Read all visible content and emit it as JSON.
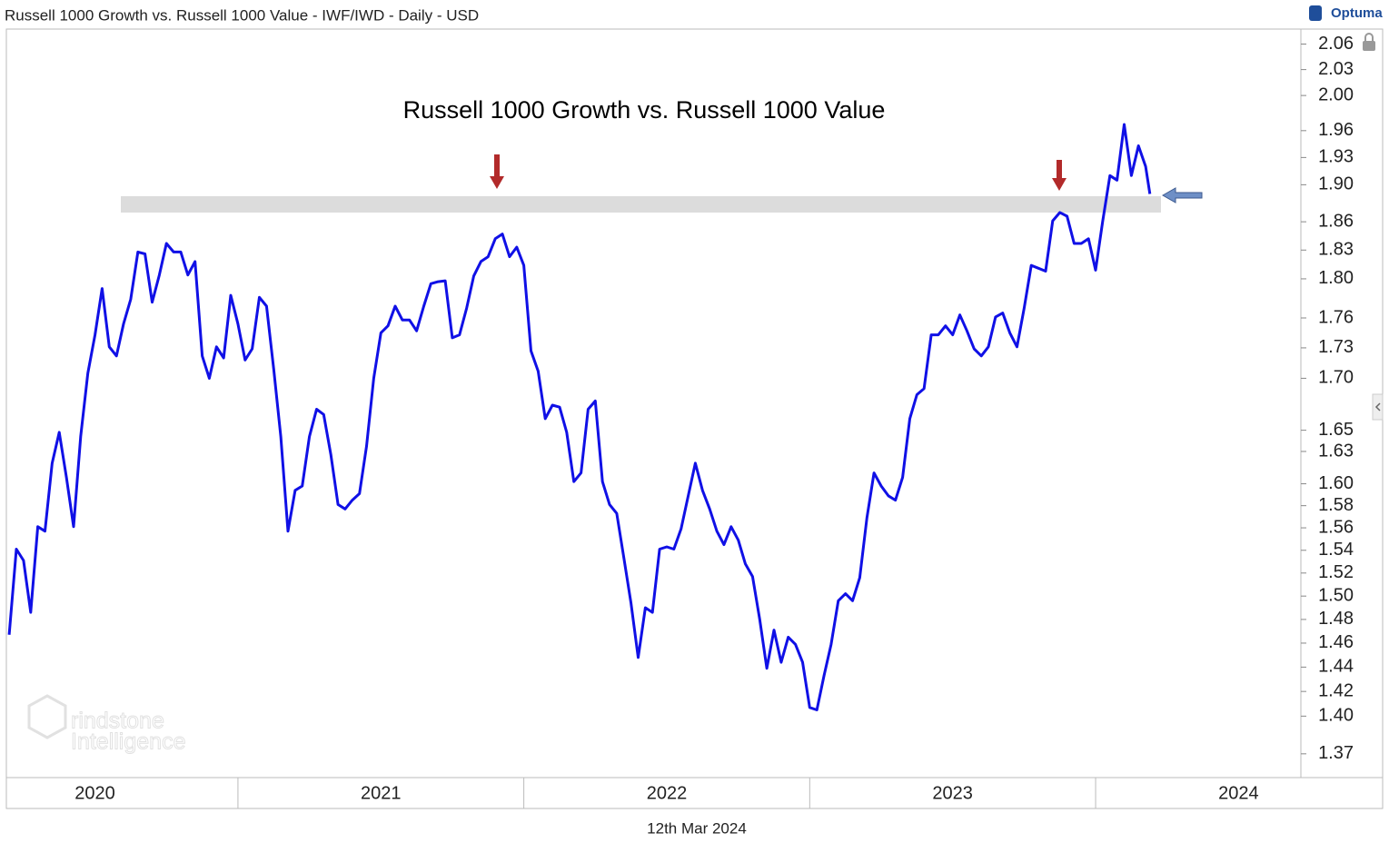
{
  "header": {
    "title": "Russell 1000 Growth vs. Russell 1000 Value - IWF/IWD - Daily - USD",
    "brand": "Optuma"
  },
  "footer": {
    "date": "12th Mar 2024"
  },
  "watermark": {
    "line1": "rindstone",
    "line2": "Intelligence"
  },
  "chart_data": {
    "type": "line",
    "title": "Russell 1000 Growth vs. Russell 1000 Value",
    "log_scale": true,
    "grid": false,
    "y_axis_side": "right",
    "color": "#1010e6",
    "xlim": [
      2020.19,
      2024.718
    ],
    "xticks": [
      2020,
      2021,
      2022,
      2023,
      2024
    ],
    "ylim": [
      1.35,
      2.08
    ],
    "yticks": [
      2.06,
      2.03,
      {
        "value": 2,
        "label": "2.00"
      },
      1.96,
      1.93,
      {
        "value": 1.9,
        "label": "1.90"
      },
      1.86,
      1.83,
      {
        "value": 1.8,
        "label": "1.80"
      },
      1.76,
      1.73,
      {
        "value": 1.7,
        "label": "1.70"
      },
      1.65,
      1.63,
      {
        "value": 1.6,
        "label": "1.60"
      },
      1.58,
      1.56,
      1.54,
      1.52,
      {
        "value": 1.5,
        "label": "1.50"
      },
      1.48,
      1.46,
      1.44,
      1.42,
      {
        "value": 1.4,
        "label": "1.40"
      },
      1.37
    ],
    "x": [
      2020.2,
      2020.225,
      2020.25,
      2020.275,
      2020.3,
      2020.325,
      2020.35,
      2020.375,
      2020.4,
      2020.425,
      2020.45,
      2020.475,
      2020.5,
      2020.525,
      2020.55,
      2020.575,
      2020.6,
      2020.625,
      2020.65,
      2020.675,
      2020.7,
      2020.725,
      2020.75,
      2020.775,
      2020.8,
      2020.825,
      2020.85,
      2020.875,
      2020.9,
      2020.925,
      2020.95,
      2020.975,
      2021.0,
      2021.025,
      2021.05,
      2021.075,
      2021.1,
      2021.125,
      2021.15,
      2021.175,
      2021.2,
      2021.225,
      2021.25,
      2021.275,
      2021.3,
      2021.325,
      2021.35,
      2021.375,
      2021.4,
      2021.425,
      2021.45,
      2021.475,
      2021.5,
      2021.525,
      2021.55,
      2021.575,
      2021.6,
      2021.625,
      2021.65,
      2021.675,
      2021.7,
      2021.725,
      2021.75,
      2021.775,
      2021.8,
      2021.825,
      2021.85,
      2021.875,
      2021.9,
      2021.925,
      2021.95,
      2021.975,
      2022.0,
      2022.025,
      2022.05,
      2022.075,
      2022.1,
      2022.125,
      2022.15,
      2022.175,
      2022.2,
      2022.225,
      2022.25,
      2022.275,
      2022.3,
      2022.325,
      2022.35,
      2022.375,
      2022.4,
      2022.425,
      2022.45,
      2022.475,
      2022.5,
      2022.525,
      2022.55,
      2022.575,
      2022.6,
      2022.625,
      2022.65,
      2022.675,
      2022.7,
      2022.725,
      2022.75,
      2022.775,
      2022.8,
      2022.825,
      2022.85,
      2022.875,
      2022.9,
      2022.925,
      2022.95,
      2022.975,
      2023.0,
      2023.025,
      2023.05,
      2023.075,
      2023.1,
      2023.125,
      2023.15,
      2023.175,
      2023.2,
      2023.225,
      2023.25,
      2023.275,
      2023.3,
      2023.325,
      2023.35,
      2023.375,
      2023.4,
      2023.425,
      2023.45,
      2023.475,
      2023.5,
      2023.525,
      2023.55,
      2023.575,
      2023.6,
      2023.625,
      2023.65,
      2023.675,
      2023.7,
      2023.725,
      2023.75,
      2023.775,
      2023.8,
      2023.825,
      2023.85,
      2023.875,
      2023.9,
      2023.925,
      2023.95,
      2023.975,
      2024.0,
      2024.025,
      2024.05,
      2024.075,
      2024.1,
      2024.125,
      2024.15,
      2024.175,
      2024.19
    ],
    "values": [
      1.467,
      1.541,
      1.531,
      1.486,
      1.561,
      1.557,
      1.619,
      1.648,
      1.606,
      1.561,
      1.644,
      1.705,
      1.743,
      1.79,
      1.731,
      1.722,
      1.754,
      1.779,
      1.828,
      1.826,
      1.776,
      1.804,
      1.837,
      1.828,
      1.828,
      1.804,
      1.818,
      1.722,
      1.7,
      1.731,
      1.72,
      1.783,
      1.754,
      1.718,
      1.729,
      1.781,
      1.772,
      1.709,
      1.644,
      1.557,
      1.594,
      1.598,
      1.644,
      1.67,
      1.665,
      1.627,
      1.581,
      1.577,
      1.585,
      1.591,
      1.635,
      1.7,
      1.745,
      1.752,
      1.772,
      1.758,
      1.758,
      1.747,
      1.772,
      1.795,
      1.797,
      1.798,
      1.74,
      1.743,
      1.77,
      1.803,
      1.818,
      1.823,
      1.842,
      1.847,
      1.823,
      1.833,
      1.814,
      1.727,
      1.707,
      1.661,
      1.674,
      1.672,
      1.648,
      1.602,
      1.61,
      1.67,
      1.678,
      1.602,
      1.581,
      1.573,
      1.533,
      1.494,
      1.448,
      1.49,
      1.486,
      1.541,
      1.543,
      1.541,
      1.559,
      1.589,
      1.619,
      1.594,
      1.577,
      1.557,
      1.545,
      1.561,
      1.549,
      1.528,
      1.517,
      1.48,
      1.439,
      1.471,
      1.444,
      1.465,
      1.459,
      1.444,
      1.407,
      1.405,
      1.433,
      1.459,
      1.496,
      1.502,
      1.496,
      1.516,
      1.569,
      1.61,
      1.598,
      1.589,
      1.585,
      1.606,
      1.661,
      1.684,
      1.69,
      1.743,
      1.743,
      1.752,
      1.743,
      1.763,
      1.747,
      1.729,
      1.722,
      1.731,
      1.761,
      1.765,
      1.745,
      1.731,
      1.77,
      1.814,
      1.811,
      1.808,
      1.861,
      1.87,
      1.866,
      1.837,
      1.837,
      1.842,
      1.809,
      1.861,
      1.91,
      1.905,
      1.967,
      1.91,
      1.943,
      1.92,
      1.89
    ]
  }
}
